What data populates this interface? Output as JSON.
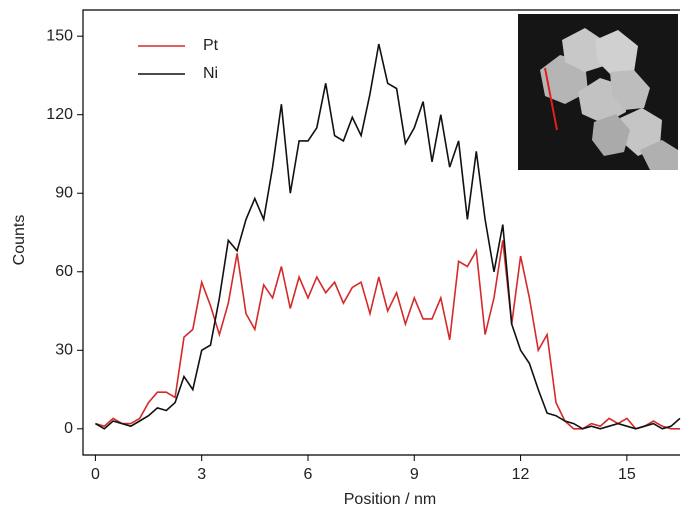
{
  "chart_data": {
    "type": "line",
    "xlabel": "Position / nm",
    "ylabel": "Counts",
    "x": [
      0,
      0.25,
      0.5,
      0.75,
      1,
      1.25,
      1.5,
      1.75,
      2,
      2.25,
      2.5,
      2.75,
      3,
      3.25,
      3.5,
      3.75,
      4,
      4.25,
      4.5,
      4.75,
      5,
      5.25,
      5.5,
      5.75,
      6,
      6.25,
      6.5,
      6.75,
      7,
      7.25,
      7.5,
      7.75,
      8,
      8.25,
      8.5,
      8.75,
      9,
      9.25,
      9.5,
      9.75,
      10,
      10.25,
      10.5,
      10.75,
      11,
      11.25,
      11.5,
      11.75,
      12,
      12.25,
      12.5,
      12.75,
      13,
      13.25,
      13.5,
      13.75,
      14,
      14.25,
      14.5,
      14.75,
      15,
      15.25,
      15.5,
      15.75,
      16,
      16.25,
      16.5
    ],
    "series": [
      {
        "name": "Pt",
        "color": "#d42a2a",
        "values": [
          2,
          1,
          4,
          2,
          2,
          4,
          10,
          14,
          14,
          12,
          35,
          38,
          56,
          47,
          36,
          48,
          67,
          44,
          38,
          55,
          50,
          62,
          46,
          58,
          50,
          58,
          52,
          56,
          48,
          54,
          56,
          44,
          58,
          45,
          52,
          40,
          50,
          42,
          42,
          50,
          34,
          64,
          62,
          68,
          36,
          50,
          72,
          40,
          66,
          50,
          30,
          36,
          10,
          3,
          0,
          0,
          2,
          1,
          4,
          2,
          4,
          0,
          1,
          3,
          1,
          0,
          0
        ]
      },
      {
        "name": "Ni",
        "color": "#111111",
        "values": [
          2,
          0,
          3,
          2,
          1,
          3,
          5,
          8,
          7,
          10,
          20,
          15,
          30,
          32,
          50,
          72,
          68,
          80,
          88,
          80,
          100,
          124,
          90,
          110,
          110,
          115,
          132,
          112,
          110,
          119,
          112,
          128,
          147,
          132,
          130,
          109,
          115,
          125,
          102,
          120,
          100,
          110,
          80,
          106,
          80,
          60,
          78,
          40,
          30,
          25,
          15,
          6,
          5,
          3,
          2,
          0,
          1,
          0,
          1,
          2,
          1,
          0,
          1,
          2,
          0,
          1,
          4
        ]
      }
    ],
    "xlim": [
      -0.35,
      16.5
    ],
    "xticks": [
      0,
      3,
      6,
      9,
      12,
      15
    ],
    "ylim": [
      -10,
      160
    ],
    "yticks": [
      0,
      30,
      60,
      90,
      120,
      150
    ],
    "legend": "upper left"
  }
}
